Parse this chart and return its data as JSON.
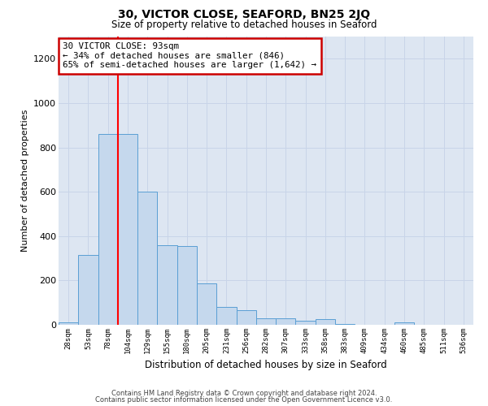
{
  "title": "30, VICTOR CLOSE, SEAFORD, BN25 2JQ",
  "subtitle": "Size of property relative to detached houses in Seaford",
  "xlabel": "Distribution of detached houses by size in Seaford",
  "ylabel": "Number of detached properties",
  "bar_values": [
    10,
    315,
    860,
    860,
    600,
    360,
    355,
    185,
    80,
    65,
    30,
    30,
    20,
    25,
    5,
    0,
    0,
    10,
    0,
    0,
    0
  ],
  "bin_labels": [
    "28sqm",
    "53sqm",
    "78sqm",
    "104sqm",
    "129sqm",
    "155sqm",
    "180sqm",
    "205sqm",
    "231sqm",
    "256sqm",
    "282sqm",
    "307sqm",
    "333sqm",
    "358sqm",
    "383sqm",
    "409sqm",
    "434sqm",
    "460sqm",
    "485sqm",
    "511sqm",
    "536sqm"
  ],
  "bar_color": "#c5d8ed",
  "bar_edge_color": "#5a9fd4",
  "grid_color": "#c8d4e8",
  "background_color": "#dde6f2",
  "annotation_text": "30 VICTOR CLOSE: 93sqm\n← 34% of detached houses are smaller (846)\n65% of semi-detached houses are larger (1,642) →",
  "annotation_box_color": "#ffffff",
  "annotation_border_color": "#cc0000",
  "ylim": [
    0,
    1300
  ],
  "yticks": [
    0,
    200,
    400,
    600,
    800,
    1000,
    1200
  ],
  "footer_line1": "Contains HM Land Registry data © Crown copyright and database right 2024.",
  "footer_line2": "Contains public sector information licensed under the Open Government Licence v3.0."
}
